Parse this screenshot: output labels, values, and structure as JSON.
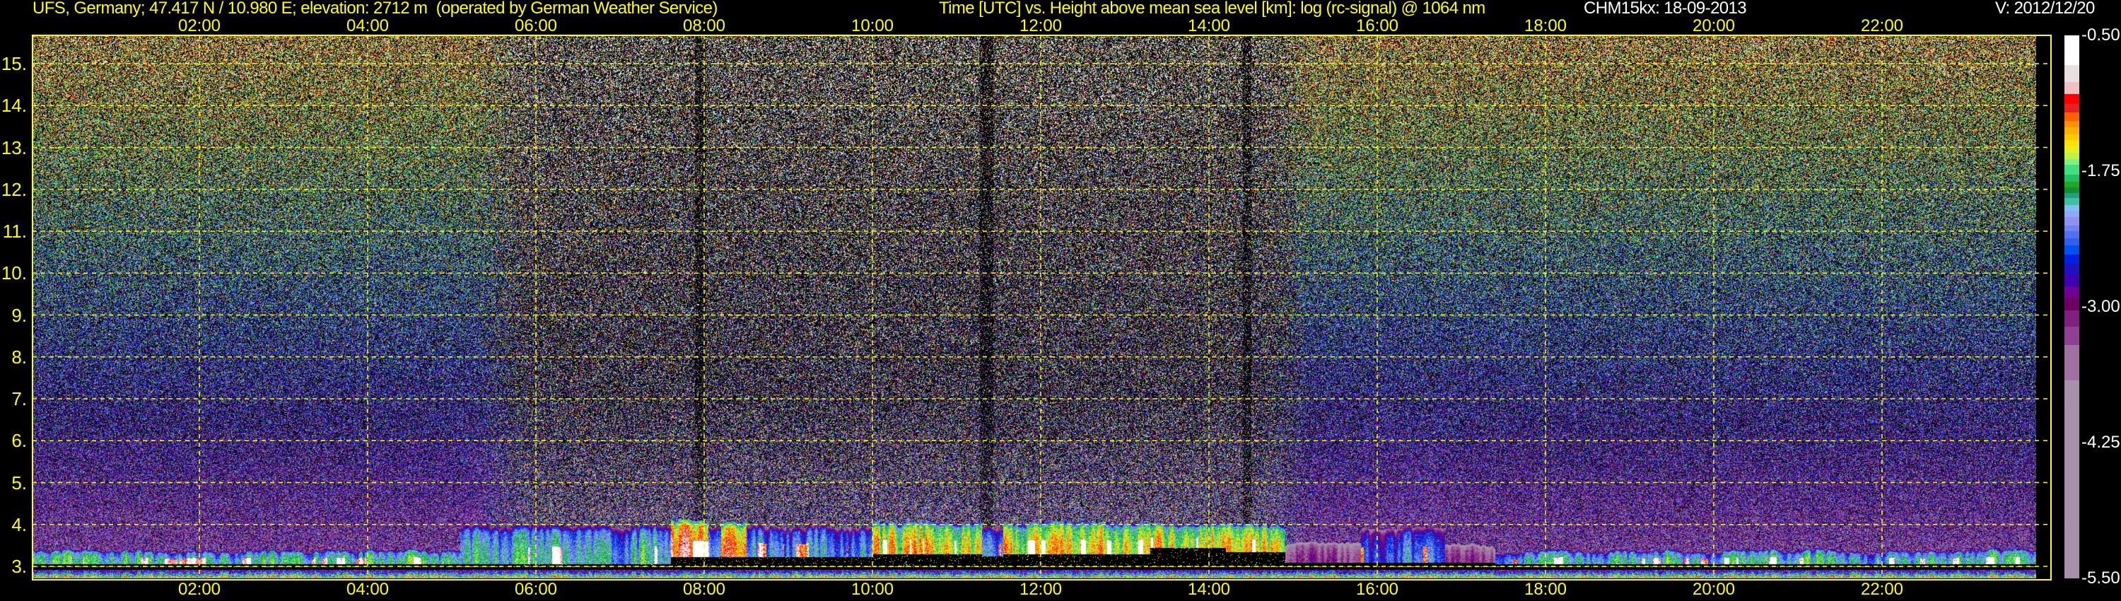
{
  "header": {
    "site_title": "UFS, Germany; 47.417 N / 10.980 E; elevation: 2712 m  (operated by German Weather Service)",
    "plot_title": "Time [UTC] vs. Height above mean sea level [km]: log (rc-signal) @ 1064 nm",
    "instrument_date": "CHM15kx: 18-09-2013",
    "version": "V: 2012/12/20"
  },
  "chart_data": {
    "type": "heatmap",
    "title": "Time [UTC] vs. Height above mean sea level [km]: log (rc-signal) @ 1064 nm",
    "xlabel": "Time [UTC]",
    "ylabel": "Height above mean sea level [km]",
    "xlim": [
      0,
      24
    ],
    "ylim": [
      2.71,
      15.67
    ],
    "grid": true,
    "x_ticks": [
      {
        "value": 2,
        "label": "02:00"
      },
      {
        "value": 4,
        "label": "04:00"
      },
      {
        "value": 6,
        "label": "06:00"
      },
      {
        "value": 8,
        "label": "08:00"
      },
      {
        "value": 10,
        "label": "10:00"
      },
      {
        "value": 12,
        "label": "12:00"
      },
      {
        "value": 14,
        "label": "14:00"
      },
      {
        "value": 16,
        "label": "16:00"
      },
      {
        "value": 18,
        "label": "18:00"
      },
      {
        "value": 20,
        "label": "20:00"
      },
      {
        "value": 22,
        "label": "22:00"
      }
    ],
    "y_ticks": [
      {
        "value": 3,
        "label": "3."
      },
      {
        "value": 4,
        "label": "4."
      },
      {
        "value": 5,
        "label": "5."
      },
      {
        "value": 6,
        "label": "6."
      },
      {
        "value": 7,
        "label": "7."
      },
      {
        "value": 8,
        "label": "8."
      },
      {
        "value": 9,
        "label": "9."
      },
      {
        "value": 10,
        "label": "10."
      },
      {
        "value": 11,
        "label": "11."
      },
      {
        "value": 12,
        "label": "12."
      },
      {
        "value": 13,
        "label": "13."
      },
      {
        "value": 14,
        "label": "14."
      },
      {
        "value": 15,
        "label": "15."
      }
    ],
    "colorbar": {
      "range": [
        -5.5,
        -0.5
      ],
      "ticks": [
        {
          "value": -0.5,
          "label": "-0.50"
        },
        {
          "value": -1.75,
          "label": "-1.75"
        },
        {
          "value": -3.0,
          "label": "-3.00"
        },
        {
          "value": -4.25,
          "label": "-4.25"
        },
        {
          "value": -5.5,
          "label": "-5.50"
        }
      ],
      "bounds": [
        -0.5,
        -0.775,
        -0.93,
        -1.04,
        -1.13,
        -1.21,
        -1.285,
        -1.345,
        -1.41,
        -1.465,
        -1.52,
        -1.58,
        -1.64,
        -1.69,
        -1.785,
        -1.845,
        -1.9,
        -1.955,
        -2.0,
        -2.065,
        -2.12,
        -2.175,
        -2.25,
        -2.305,
        -2.37,
        -2.435,
        -2.52,
        -2.6,
        -2.71,
        -2.82,
        -2.92,
        -3.03,
        -3.18,
        -3.35,
        -3.68,
        -5.5
      ],
      "colors": [
        "#ffffff",
        "#e8e0e0",
        "#f0c0c0",
        "#ff0000",
        "#e82020",
        "#ff6000",
        "#ff9000",
        "#ffb000",
        "#ffc800",
        "#ffe000",
        "#e0f020",
        "#c0f040",
        "#80f080",
        "#40e080",
        "#20c060",
        "#20a820",
        "#109030",
        "#20a080",
        "#40c0a0",
        "#80c0f0",
        "#90a8f8",
        "#9090f0",
        "#7080f0",
        "#5070f0",
        "#3060f0",
        "#0050f0",
        "#0020e0",
        "#2010c0",
        "#4000b0",
        "#700090",
        "#700060",
        "#802080",
        "#904090",
        "#a070a0",
        "#a890a8"
      ]
    },
    "boundary_layer": [
      {
        "from": 0.0,
        "to": 5.1,
        "base_km": 3.06,
        "top_km": 3.38,
        "level": -1.95
      },
      {
        "from": 5.1,
        "to": 7.6,
        "base_km": 3.06,
        "top_km": 3.95,
        "level": -2.05
      },
      {
        "from": 7.6,
        "to": 8.05,
        "base_km": 3.22,
        "top_km": 4.1,
        "level": -1.1
      },
      {
        "from": 8.05,
        "to": 8.2,
        "base_km": 3.22,
        "top_km": 3.95,
        "level": -2.2
      },
      {
        "from": 8.2,
        "to": 8.5,
        "base_km": 3.22,
        "top_km": 4.05,
        "level": -1.3
      },
      {
        "from": 8.5,
        "to": 10.0,
        "base_km": 3.22,
        "top_km": 3.95,
        "level": -2.25
      },
      {
        "from": 10.0,
        "to": 11.3,
        "base_km": 3.3,
        "top_km": 4.05,
        "level": -1.45
      },
      {
        "from": 11.3,
        "to": 11.55,
        "base_km": 3.25,
        "top_km": 3.9,
        "level": -2.4
      },
      {
        "from": 11.55,
        "to": 13.3,
        "base_km": 3.3,
        "top_km": 4.05,
        "level": -1.45
      },
      {
        "from": 13.3,
        "to": 14.2,
        "base_km": 3.45,
        "top_km": 4.0,
        "level": -1.6
      },
      {
        "from": 14.2,
        "to": 14.9,
        "base_km": 3.35,
        "top_km": 4.0,
        "level": -1.5
      },
      {
        "from": 14.9,
        "to": 15.8,
        "base_km": 3.1,
        "top_km": 3.55,
        "level": -3.3
      },
      {
        "from": 15.8,
        "to": 16.8,
        "base_km": 3.1,
        "top_km": 3.9,
        "level": -2.5
      },
      {
        "from": 16.8,
        "to": 17.4,
        "base_km": 3.1,
        "top_km": 3.5,
        "level": -3.3
      },
      {
        "from": 17.4,
        "to": 24.0,
        "base_km": 3.06,
        "top_km": 3.38,
        "level": -2.0
      }
    ],
    "data_end_time": 23.83
  },
  "colors": {
    "axis": "#ffff00",
    "text_secondary": "#ffffff",
    "background": "#000000"
  }
}
